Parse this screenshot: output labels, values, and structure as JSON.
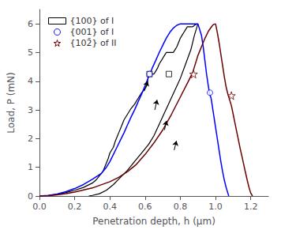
{
  "chart_data": {
    "type": "line",
    "xlabel": "Penetration depth, h (μm)",
    "ylabel": "Load, P (mN)",
    "xlim": [
      0,
      1.3
    ],
    "ylim": [
      0,
      6.5
    ],
    "xticks": [
      {
        "value": 0,
        "label": "0.0"
      },
      0.2,
      0.4,
      0.6,
      0.8,
      {
        "value": 1.0,
        "label": "1.0"
      },
      1.2
    ],
    "yticks": [
      0,
      1,
      2,
      3,
      4,
      5,
      6
    ],
    "grid": false,
    "legend": "upper left",
    "series": [
      {
        "name": "{100} of I",
        "color": "#000000",
        "marker": "square",
        "load": {
          "x": [
            0,
            0.05,
            0.1,
            0.15,
            0.2,
            0.25,
            0.3,
            0.32,
            0.34,
            0.36,
            0.37,
            0.38,
            0.39,
            0.4,
            0.42,
            0.43,
            0.44,
            0.45,
            0.46,
            0.47,
            0.48,
            0.5,
            0.52,
            0.54,
            0.56,
            0.58,
            0.6,
            0.61,
            0.62,
            0.62,
            0.65,
            0.65,
            0.66,
            0.67,
            0.68,
            0.69,
            0.7,
            0.71,
            0.72,
            0.72,
            0.76,
            0.76,
            0.77,
            0.78,
            0.79,
            0.8,
            0.81,
            0.82,
            0.83,
            0.84,
            0.84,
            0.87,
            0.87,
            0.875,
            0.88,
            0.885,
            0.89,
            0.895,
            0.9
          ],
          "values": [
            0,
            0.02,
            0.06,
            0.12,
            0.2,
            0.3,
            0.45,
            0.55,
            0.7,
            0.85,
            1.0,
            1.15,
            1.3,
            1.5,
            1.7,
            1.9,
            2.05,
            2.2,
            2.35,
            2.5,
            2.65,
            2.85,
            3.05,
            3.2,
            3.4,
            3.6,
            3.75,
            3.85,
            4.25,
            4.25,
            4.25,
            4.25,
            4.35,
            4.45,
            4.6,
            4.7,
            4.8,
            4.9,
            5.0,
            5.0,
            5.0,
            5.0,
            5.1,
            5.2,
            5.35,
            5.5,
            5.6,
            5.7,
            5.8,
            5.9,
            5.9,
            5.9,
            5.9,
            5.92,
            5.95,
            5.97,
            5.98,
            5.99,
            6.0
          ]
        },
        "unload": {
          "x": [
            0.9,
            0.88,
            0.86,
            0.83,
            0.8,
            0.77,
            0.74,
            0.71,
            0.68,
            0.65,
            0.62,
            0.58,
            0.54,
            0.5,
            0.46,
            0.42,
            0.38,
            0.34,
            0.3,
            0.28
          ],
          "values": [
            6.0,
            5.6,
            5.1,
            4.6,
            4.1,
            3.7,
            3.3,
            2.9,
            2.5,
            2.1,
            1.8,
            1.5,
            1.2,
            0.9,
            0.65,
            0.4,
            0.2,
            0.08,
            0.02,
            0.0
          ]
        },
        "markers": {
          "x": [
            0.625,
            0.735
          ],
          "values": [
            4.25,
            4.25
          ]
        }
      },
      {
        "name": "{001} of I",
        "color": "#0000ff",
        "marker": "circle",
        "load": {
          "x": [
            0,
            0.05,
            0.1,
            0.15,
            0.2,
            0.25,
            0.3,
            0.35,
            0.38,
            0.4,
            0.42,
            0.44,
            0.46,
            0.48,
            0.5,
            0.52,
            0.54,
            0.56,
            0.58,
            0.6,
            0.62,
            0.64,
            0.66,
            0.68,
            0.7,
            0.72,
            0.74,
            0.76,
            0.78,
            0.8,
            0.82,
            0.84,
            0.86,
            0.88,
            0.9
          ],
          "values": [
            0,
            0.02,
            0.07,
            0.15,
            0.26,
            0.4,
            0.58,
            0.78,
            1.0,
            1.2,
            1.45,
            1.7,
            1.95,
            2.2,
            2.48,
            2.75,
            3.0,
            3.28,
            3.55,
            3.85,
            4.15,
            4.45,
            4.72,
            5.0,
            5.25,
            5.5,
            5.7,
            5.85,
            5.95,
            6.0,
            6.0,
            6.0,
            6.0,
            6.0,
            6.0
          ]
        },
        "unload": {
          "x": [
            0.9,
            0.92,
            0.93,
            0.94,
            0.95,
            0.96,
            0.965,
            0.97,
            0.975,
            0.98,
            0.99,
            1.0,
            1.01,
            1.02,
            1.03,
            1.04,
            1.05,
            1.06,
            1.07,
            1.075
          ],
          "values": [
            6.0,
            5.6,
            5.2,
            4.7,
            4.2,
            3.8,
            3.6,
            3.5,
            3.4,
            3.2,
            2.8,
            2.4,
            2.0,
            1.6,
            1.2,
            0.85,
            0.55,
            0.3,
            0.1,
            0.0
          ]
        },
        "markers": {
          "x": [
            0.625,
            0.968
          ],
          "values": [
            4.25,
            3.6
          ]
        }
      },
      {
        "name": "{102̄} of II",
        "color": "#6b0000",
        "marker": "star",
        "load": {
          "x": [
            0,
            0.05,
            0.1,
            0.15,
            0.2,
            0.3,
            0.4,
            0.45,
            0.5,
            0.55,
            0.6,
            0.65,
            0.7,
            0.75,
            0.8,
            0.85,
            0.87,
            0.88,
            0.89,
            0.9,
            0.92,
            0.94,
            0.96,
            0.975,
            0.985,
            0.99,
            1.0
          ],
          "values": [
            0,
            0.01,
            0.04,
            0.08,
            0.14,
            0.28,
            0.5,
            0.65,
            0.85,
            1.1,
            1.45,
            1.85,
            2.3,
            2.85,
            3.45,
            4.05,
            4.3,
            4.5,
            4.7,
            4.9,
            5.2,
            5.5,
            5.75,
            5.88,
            5.96,
            5.98,
            6.0
          ]
        },
        "unload": {
          "x": [
            1.0,
            1.01,
            1.02,
            1.03,
            1.04,
            1.05,
            1.06,
            1.07,
            1.08,
            1.09,
            1.1,
            1.11,
            1.12,
            1.13,
            1.14,
            1.15,
            1.16,
            1.17,
            1.18,
            1.19,
            1.2,
            1.21
          ],
          "values": [
            6.0,
            5.7,
            5.35,
            4.95,
            4.55,
            4.15,
            3.8,
            3.55,
            3.35,
            3.15,
            2.85,
            2.55,
            2.25,
            1.95,
            1.65,
            1.38,
            1.1,
            0.82,
            0.55,
            0.3,
            0.1,
            0.0
          ]
        },
        "markers": {
          "x": [
            0.875,
            1.09
          ],
          "values": [
            4.25,
            3.5
          ]
        }
      }
    ],
    "arrows": {
      "color": "#000000",
      "values": [
        [
          0.595,
          3.65,
          0.615,
          4.0
        ],
        [
          0.655,
          3.0,
          0.668,
          3.35
        ],
        [
          0.71,
          2.3,
          0.722,
          2.62
        ],
        [
          0.765,
          1.6,
          0.778,
          1.92
        ]
      ]
    }
  }
}
